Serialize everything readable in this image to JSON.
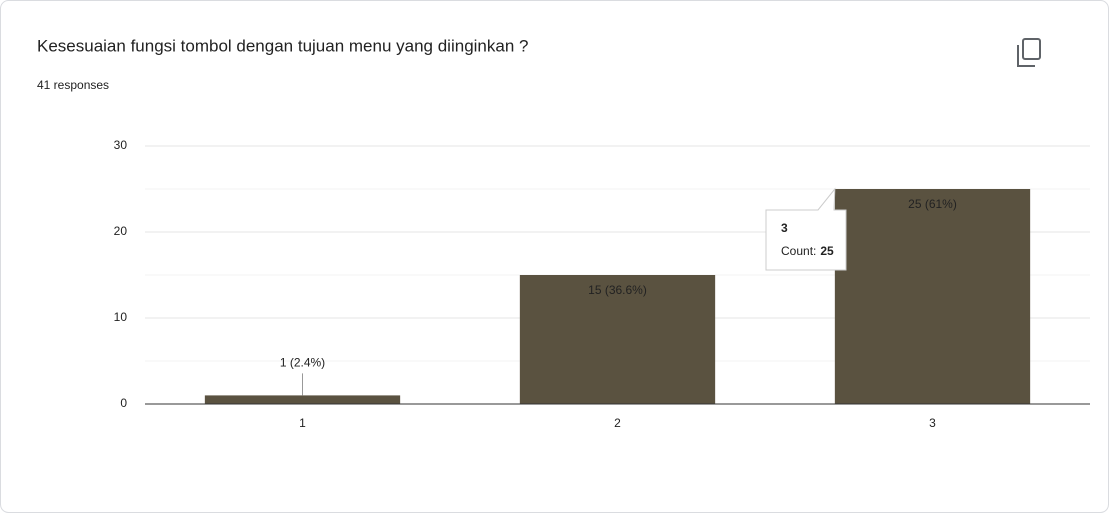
{
  "chart_data": {
    "type": "bar",
    "title": "Kesesuaian fungsi tombol dengan tujuan menu yang diinginkan ?",
    "subtitle": "41 responses",
    "categories": [
      "1",
      "2",
      "3"
    ],
    "values": [
      1,
      15,
      25
    ],
    "value_labels": [
      "1 (2.4%)",
      "15 (36.6%)",
      "25 (61%)"
    ],
    "color": "#5a5240",
    "ylim": [
      0,
      30
    ],
    "yticks": [
      0,
      10,
      20,
      30
    ],
    "minor_yticks": [
      5,
      15,
      25
    ],
    "grid": true,
    "tooltip": {
      "category": "3",
      "label": "Count:",
      "value": 25
    }
  }
}
